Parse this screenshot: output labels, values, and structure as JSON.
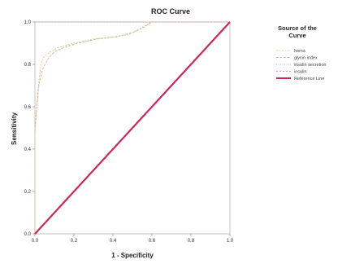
{
  "chart_data": {
    "type": "line",
    "title": "ROC Curve",
    "xlabel": "1 - Specificity",
    "ylabel": "Sensitivity",
    "xlim": [
      0,
      1
    ],
    "ylim": [
      0,
      1
    ],
    "xticks": [
      "0.0",
      "0.2",
      "0.4",
      "0.6",
      "0.8",
      "1.0"
    ],
    "yticks": [
      "0.0",
      "0.2",
      "0.4",
      "0.6",
      "0.8",
      "1.0"
    ],
    "grid": false,
    "legend": {
      "title_lines": [
        "Source of the",
        "Curve"
      ],
      "placement": "right"
    },
    "series": [
      {
        "name": "homa",
        "color": "#e7c98c",
        "dash": "2,1.5",
        "x": [
          0,
          0,
          0.01,
          0.02,
          0.03,
          0.05,
          0.08,
          0.12,
          0.2,
          0.3,
          0.4,
          0.48,
          0.52,
          0.56,
          0.6,
          0.7,
          0.85,
          1
        ],
        "y": [
          0,
          0.5,
          0.62,
          0.72,
          0.8,
          0.84,
          0.86,
          0.88,
          0.9,
          0.92,
          0.93,
          0.94,
          0.96,
          0.98,
          1,
          1,
          1,
          1
        ]
      },
      {
        "name": "glycin index",
        "color": "#c8c0a8",
        "dash": "3,1.5",
        "x": [
          0,
          0,
          0.01,
          0.02,
          0.04,
          0.07,
          0.1,
          0.15,
          0.22,
          0.32,
          0.42,
          0.5,
          0.55,
          0.6,
          0.7,
          1
        ],
        "y": [
          0,
          0.48,
          0.6,
          0.7,
          0.78,
          0.83,
          0.86,
          0.88,
          0.9,
          0.92,
          0.93,
          0.95,
          0.97,
          1,
          1,
          1
        ]
      },
      {
        "name": "insulin secretion",
        "color": "#b7b7b7",
        "dash": "1,1.5",
        "x": [
          0,
          0.05,
          0.1,
          0.2,
          0.3,
          0.4,
          0.5,
          0.55,
          0.6,
          0.7,
          0.8,
          1
        ],
        "y": [
          1,
          1,
          1,
          1,
          1,
          1,
          1,
          1,
          1,
          1,
          1,
          1
        ]
      },
      {
        "name": "insulin",
        "color": "#e49a9a",
        "dash": "2,2",
        "x": [
          0,
          0.1,
          0.2,
          0.3,
          0.4,
          0.5,
          0.6,
          0.7,
          0.8,
          0.9,
          1
        ],
        "y": [
          1,
          1,
          1,
          1,
          1,
          1,
          1,
          1,
          1,
          1,
          1
        ]
      },
      {
        "name": "Reference Line",
        "color": "#c8295a",
        "dash": "",
        "width": 2.2,
        "x": [
          0,
          1
        ],
        "y": [
          0,
          1
        ]
      }
    ]
  }
}
